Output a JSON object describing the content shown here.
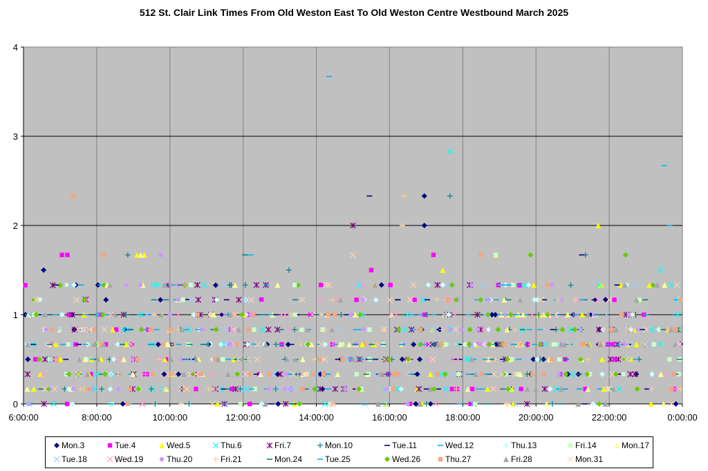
{
  "chart_data": {
    "type": "scatter",
    "title": "512 St. Clair Link Times From Old Weston East To Old Weston Centre Westbound March 2025",
    "xlabel": "",
    "ylabel": "",
    "x_ticks": [
      "6:00:00",
      "8:00:00",
      "10:00:00",
      "12:00:00",
      "14:00:00",
      "16:00:00",
      "18:00:00",
      "20:00:00",
      "22:00:00",
      "0:00:00"
    ],
    "x_range_hours": [
      6,
      24
    ],
    "ylim": [
      0,
      4
    ],
    "y_ticks": [
      "0",
      "1",
      "2",
      "3",
      "4"
    ],
    "grid": true,
    "legend_position": "bottom",
    "plot_background": "#c0c0c0",
    "typical_levels": [
      0,
      0.167,
      0.333,
      0.5,
      0.667,
      0.833,
      1,
      1.167,
      1.333
    ],
    "series": [
      {
        "name": "Mon.3",
        "marker": "diamond",
        "color": "#000080",
        "points": [
          [
            6.05,
            1.0
          ],
          [
            6.55,
            1.5
          ],
          [
            9.95,
            1.33
          ],
          [
            11.25,
            1.33
          ],
          [
            16.95,
            2.33
          ],
          [
            16.95,
            2.0
          ],
          [
            18.8,
            1.0
          ],
          [
            21.9,
            1.17
          ],
          [
            23.95,
            0.67
          ]
        ]
      },
      {
        "name": "Tue.4",
        "marker": "square",
        "color": "#ff00ff",
        "points": [
          [
            6.05,
            1.33
          ],
          [
            7.05,
            1.67
          ],
          [
            7.2,
            1.67
          ],
          [
            12.5,
            1.17
          ],
          [
            15.5,
            1.5
          ],
          [
            17.2,
            1.67
          ],
          [
            19.55,
            1.33
          ]
        ]
      },
      {
        "name": "Wed.5",
        "marker": "triangle",
        "color": "#ffff00",
        "points": [
          [
            9.1,
            1.67
          ],
          [
            9.3,
            1.67
          ],
          [
            17.45,
            1.5
          ],
          [
            18.9,
            1.67
          ],
          [
            21.7,
            2.0
          ],
          [
            23.1,
            1.33
          ]
        ]
      },
      {
        "name": "Thu.6",
        "marker": "x",
        "color": "#00ffff",
        "points": [
          [
            17.65,
            2.83
          ],
          [
            23.4,
            1.5
          ],
          [
            19.7,
            1.33
          ]
        ]
      },
      {
        "name": "Fri.7",
        "marker": "star",
        "color": "#800080",
        "points": [
          [
            15.0,
            2.0
          ],
          [
            6.8,
            1.33
          ],
          [
            7.7,
            1.17
          ],
          [
            23.9,
            0.83
          ]
        ]
      },
      {
        "name": "Mon.10",
        "marker": "plus",
        "color": "#008080",
        "points": [
          [
            8.85,
            1.67
          ],
          [
            13.25,
            1.5
          ],
          [
            17.65,
            2.33
          ],
          [
            20.95,
            1.33
          ],
          [
            21.35,
            1.67
          ]
        ]
      },
      {
        "name": "Tue.11",
        "marker": "dash",
        "color": "#000080",
        "points": [
          [
            15.45,
            2.33
          ],
          [
            10.45,
            1.17
          ],
          [
            21.25,
            1.67
          ],
          [
            6.4,
            1.0
          ]
        ]
      },
      {
        "name": "Wed.12",
        "marker": "dash",
        "color": "#00b0f0",
        "points": [
          [
            14.35,
            3.67
          ],
          [
            12.2,
            1.67
          ],
          [
            23.65,
            2.0
          ],
          [
            19.7,
            1.0
          ]
        ]
      },
      {
        "name": "Thu.13",
        "marker": "diamond",
        "color": "#ccffff",
        "points": [
          [
            6.45,
            1.17
          ],
          [
            7.05,
            1.0
          ],
          [
            10.8,
            0.83
          ],
          [
            15.3,
            1.17
          ],
          [
            23.9,
            1.17
          ]
        ]
      },
      {
        "name": "Fri.14",
        "marker": "square",
        "color": "#ccffcc",
        "points": [
          [
            18.9,
            1.67
          ],
          [
            11.1,
            0.67
          ],
          [
            13.6,
            0.83
          ]
        ]
      },
      {
        "name": "Mon.17",
        "marker": "triangle",
        "color": "#ffff99",
        "points": [
          [
            9.2,
            1.67
          ],
          [
            12.8,
            1.0
          ],
          [
            14.3,
            1.0
          ],
          [
            17.5,
            1.0
          ],
          [
            21.6,
            1.0
          ]
        ]
      },
      {
        "name": "Tue.18",
        "marker": "x",
        "color": "#99ccff",
        "points": [
          [
            18.65,
            1.17
          ],
          [
            7.35,
            0.67
          ],
          [
            20.3,
            0.33
          ]
        ]
      },
      {
        "name": "Wed.19",
        "marker": "x",
        "color": "#ff99cc",
        "points": [
          [
            6.2,
            1.0
          ],
          [
            14.55,
            0.67
          ],
          [
            16.6,
            0.5
          ]
        ]
      },
      {
        "name": "Thu.20",
        "marker": "circle",
        "color": "#cc99ff",
        "points": [
          [
            9.75,
            1.67
          ],
          [
            10.0,
            1.0
          ],
          [
            16.0,
            1.33
          ],
          [
            22.4,
            0.67
          ]
        ]
      },
      {
        "name": "Fri.21",
        "marker": "plus",
        "color": "#ffcc99",
        "points": [
          [
            16.4,
            2.33
          ],
          [
            16.35,
            2.0
          ],
          [
            17.3,
            1.17
          ],
          [
            21.1,
            1.17
          ]
        ]
      },
      {
        "name": "Mon.24",
        "marker": "dash",
        "color": "#008080",
        "points": [
          [
            7.55,
            0.83
          ],
          [
            12.05,
            1.67
          ],
          [
            20.5,
            1.0
          ]
        ]
      },
      {
        "name": "Tue.25",
        "marker": "dash",
        "color": "#00b0f0",
        "points": [
          [
            23.5,
            2.67
          ],
          [
            12.3,
            0.67
          ],
          [
            18.15,
            1.0
          ]
        ]
      },
      {
        "name": "Wed.26",
        "marker": "diamond",
        "color": "#66cc00",
        "points": [
          [
            7.0,
            1.33
          ],
          [
            8.2,
            1.33
          ],
          [
            10.4,
            1.33
          ],
          [
            13.5,
            1.33
          ],
          [
            19.85,
            1.67
          ],
          [
            22.45,
            1.67
          ],
          [
            23.2,
            1.33
          ]
        ]
      },
      {
        "name": "Thu.27",
        "marker": "square",
        "color": "#f4a582",
        "points": [
          [
            7.35,
            2.33
          ],
          [
            8.2,
            1.67
          ],
          [
            18.5,
            1.67
          ],
          [
            15.3,
            0.67
          ],
          [
            11.3,
            0.5
          ]
        ]
      },
      {
        "name": "Fri.28",
        "marker": "triangle",
        "color": "#a6a6a6",
        "points": [
          [
            12.6,
            0.0
          ],
          [
            16.8,
            0.0
          ],
          [
            21.9,
            0.0
          ]
        ]
      },
      {
        "name": "Mon.31",
        "marker": "x",
        "color": "#fcd5b4",
        "points": [
          [
            15.0,
            1.67
          ],
          [
            23.7,
            0.0
          ],
          [
            10.2,
            0.33
          ]
        ]
      }
    ]
  }
}
